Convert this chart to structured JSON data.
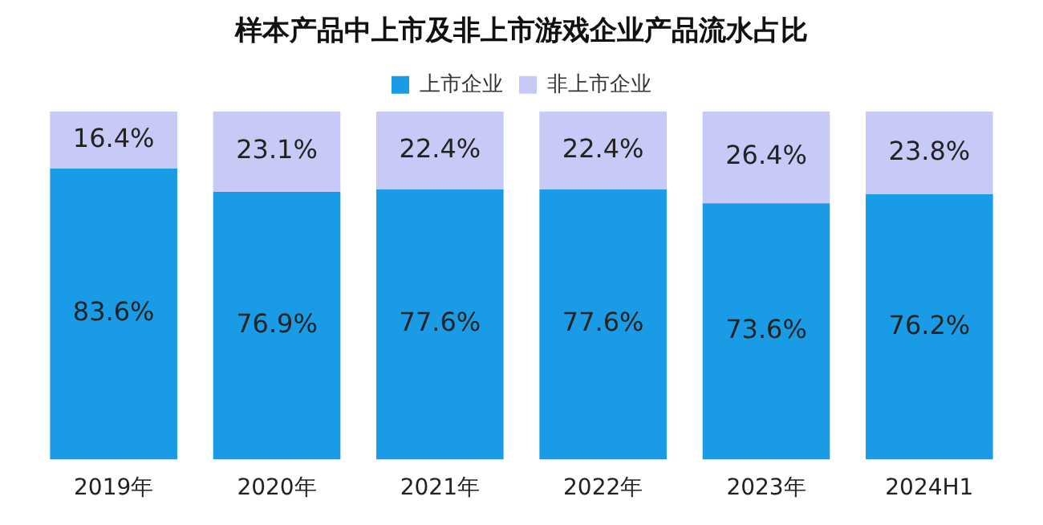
{
  "chart_data": {
    "type": "bar",
    "title": "样本产品中上市及非上市游戏企业产品流水占比",
    "categories": [
      "2019年",
      "2020年",
      "2021年",
      "2022年",
      "2023年",
      "2024H1"
    ],
    "stacked": true,
    "ylim": [
      0,
      100
    ],
    "tick_labels": "x",
    "grid": false,
    "legend": "top",
    "series": [
      {
        "name": "上市企业",
        "color": "#1a9be6",
        "values": [
          83.6,
          76.9,
          77.6,
          77.6,
          73.6,
          76.2
        ],
        "value_labels": [
          "83.6%",
          "76.9%",
          "77.6%",
          "77.6%",
          "73.6%",
          "76.2%"
        ]
      },
      {
        "name": "非上市企业",
        "color": "#c7c9f6",
        "values": [
          16.4,
          23.1,
          22.4,
          22.4,
          26.4,
          23.8
        ],
        "value_labels": [
          "16.4%",
          "23.1%",
          "22.4%",
          "22.4%",
          "26.4%",
          "23.8%"
        ]
      }
    ]
  }
}
